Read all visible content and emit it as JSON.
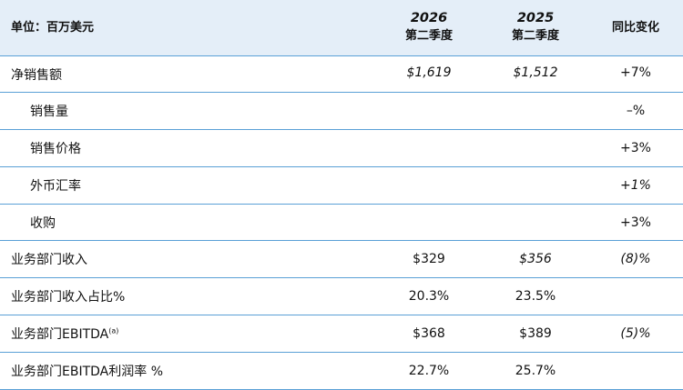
{
  "header": {
    "unit_label": "单位：百万美元",
    "col1_year": "2026",
    "col1_period": "第二季度",
    "col2_year": "2025",
    "col2_period": "第二季度",
    "yoy_label": "同比变化"
  },
  "rows": [
    {
      "label": "净销售额",
      "v1": "$1,619",
      "v2": "$1,512",
      "yoy": "+7%"
    },
    {
      "label": "销售量",
      "v1": "",
      "v2": "",
      "yoy": "–%"
    },
    {
      "label": "销售价格",
      "v1": "",
      "v2": "",
      "yoy": "+3%"
    },
    {
      "label": "外币汇率",
      "v1": "",
      "v2": "",
      "yoy": "+1%"
    },
    {
      "label": "收购",
      "v1": "",
      "v2": "",
      "yoy": "+3%"
    },
    {
      "label": "业务部门收入",
      "v1": "$329",
      "v2": "$356",
      "yoy": "(8)%"
    },
    {
      "label": "业务部门收入占比%",
      "v1": "20.3%",
      "v2": "23.5%",
      "yoy": ""
    },
    {
      "label": "业务部门EBITDA",
      "note": "(a)",
      "v1": "$368",
      "v2": "$389",
      "yoy": "(5)%"
    },
    {
      "label": "业务部门EBITDA利润率 %",
      "v1": "22.7%",
      "v2": "25.7%",
      "yoy": ""
    }
  ]
}
